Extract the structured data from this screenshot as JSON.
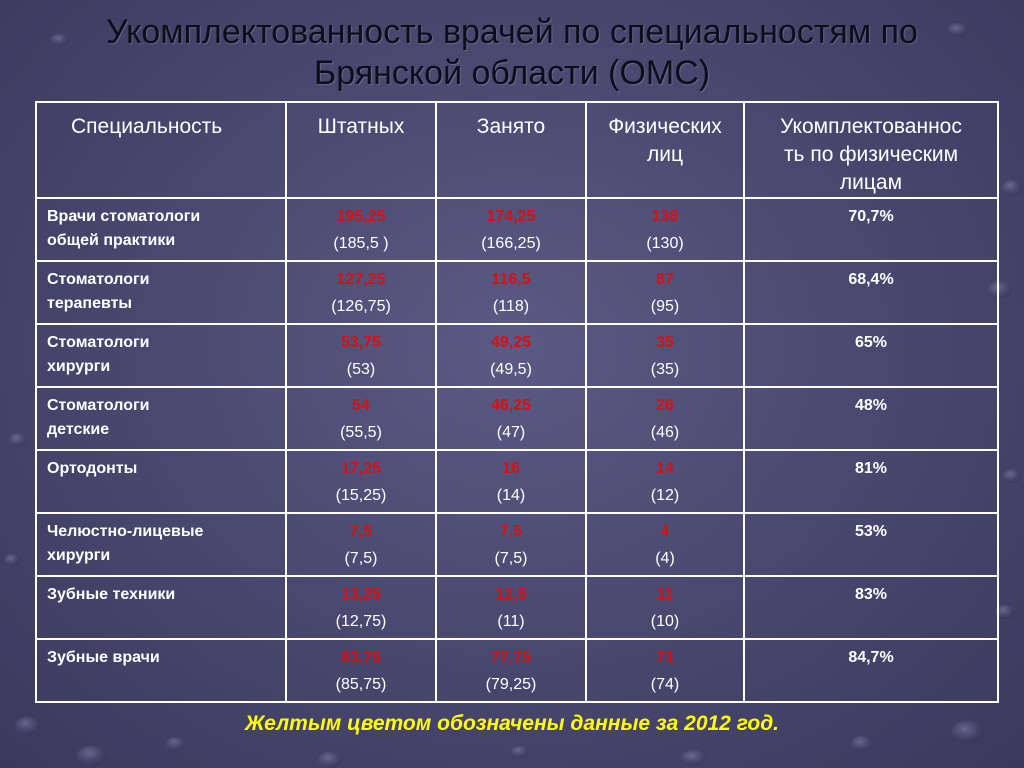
{
  "slide": {
    "title_line1": "Укомплектованность врачей по специальностям по",
    "title_line2": "Брянской области (ОМС)",
    "footnote": "Желтым цветом обозначены данные за 2012 год."
  },
  "table": {
    "headers": [
      "Специальность",
      "Штатных",
      "Занято",
      "Физических лиц",
      "Укомплектованность по физическим лицам"
    ],
    "header_lines": {
      "col1": [
        "Специальность"
      ],
      "col2": [
        "Штатных"
      ],
      "col3": [
        "Занято"
      ],
      "col4": [
        "Физических",
        "лиц"
      ],
      "col5": [
        "Укомплектованнос",
        "ть по физическим",
        "лицам"
      ]
    },
    "rows": [
      {
        "name_lines": [
          "Врачи стоматологи",
          "общей практики"
        ],
        "staff": "195,25",
        "staff_prev": "(185,5 )",
        "occupied": "174,25",
        "occupied_prev": "(166,25)",
        "persons": "138",
        "persons_prev": "(130)",
        "pct": "70,7%"
      },
      {
        "name_lines": [
          "Стоматологи",
          "терапевты"
        ],
        "staff": "127,25",
        "staff_prev": "(126,75)",
        "occupied": "116,5",
        "occupied_prev": "(118)",
        "persons": "87",
        "persons_prev": "(95)",
        "pct": "68,4%"
      },
      {
        "name_lines": [
          "Стоматологи",
          "хирурги"
        ],
        "staff": "53,75",
        "staff_prev": "(53)",
        "occupied": "49,25",
        "occupied_prev": "(49,5)",
        "persons": "35",
        "persons_prev": "(35)",
        "pct": "65%"
      },
      {
        "name_lines": [
          "Стоматологи",
          "детские"
        ],
        "staff": "54",
        "staff_prev": "(55,5)",
        "occupied": "46,25",
        "occupied_prev": "(47)",
        "persons": "26",
        "persons_prev": "(46)",
        "pct": "48%"
      },
      {
        "name_lines": [
          "Ортодонты"
        ],
        "staff": "17,25",
        "staff_prev": "(15,25)",
        "occupied": "16",
        "occupied_prev": "(14)",
        "persons": "14",
        "persons_prev": "(12)",
        "pct": "81%"
      },
      {
        "name_lines": [
          "Челюстно-лицевые",
          "хирурги"
        ],
        "staff": "7,5",
        "staff_prev": "(7,5)",
        "occupied": "7,5",
        "occupied_prev": "(7,5)",
        "persons": "4",
        "persons_prev": "(4)",
        "pct": "53%"
      },
      {
        "name_lines": [
          "Зубные техники"
        ],
        "staff": "13,25",
        "staff_prev": "(12,75)",
        "occupied": "12,5",
        "occupied_prev": "(11)",
        "persons": "11",
        "persons_prev": "(10)",
        "pct": "83%"
      },
      {
        "name_lines": [
          "Зубные врачи"
        ],
        "staff": "83,75",
        "staff_prev": "(85,75)",
        "occupied": "77,75",
        "occupied_prev": "(79,25)",
        "persons": "71",
        "persons_prev": "(74)",
        "pct": "84,7%"
      }
    ]
  },
  "colors": {
    "background": "#4a4a72",
    "current_value": "#d81010",
    "previous_value": "#ffffff",
    "footnote": "#ffff00",
    "title": "#0d0d1c"
  }
}
